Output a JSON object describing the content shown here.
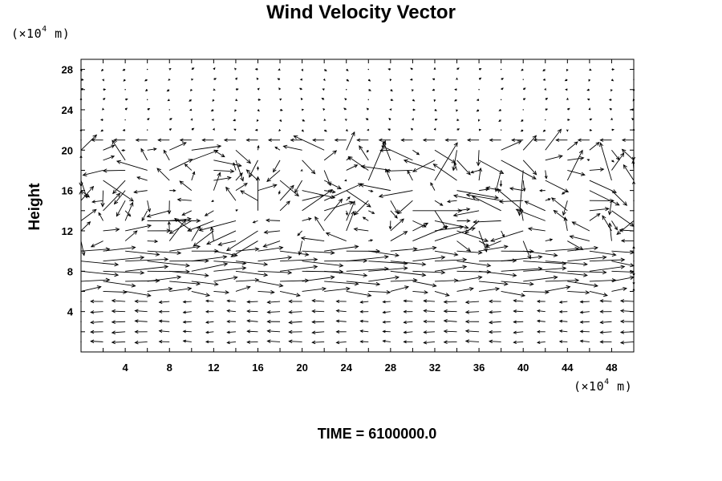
{
  "chart_data": {
    "type": "vector-field",
    "title": "Wind Velocity Vector",
    "ylabel": "Height",
    "x_unit": {
      "prefix": "(×10",
      "exp": "4",
      "suffix": " m)"
    },
    "y_unit": {
      "prefix": "(×10",
      "exp": "4",
      "suffix": " m)"
    },
    "xlim": [
      0,
      50
    ],
    "ylim": [
      0,
      29
    ],
    "xticks": [
      4,
      8,
      12,
      16,
      20,
      24,
      28,
      32,
      36,
      40,
      44,
      48
    ],
    "yticks": [
      4,
      8,
      12,
      16,
      20,
      24,
      28
    ],
    "grid_x_spacing": 2,
    "grid_y_spacing": 1,
    "annotation": "TIME = 6100000.0",
    "note": "Arrow grid: x = 0..50 step 2, y = 1..29 step 1; u,v approximate the shown field (x units per arrow length)."
  }
}
